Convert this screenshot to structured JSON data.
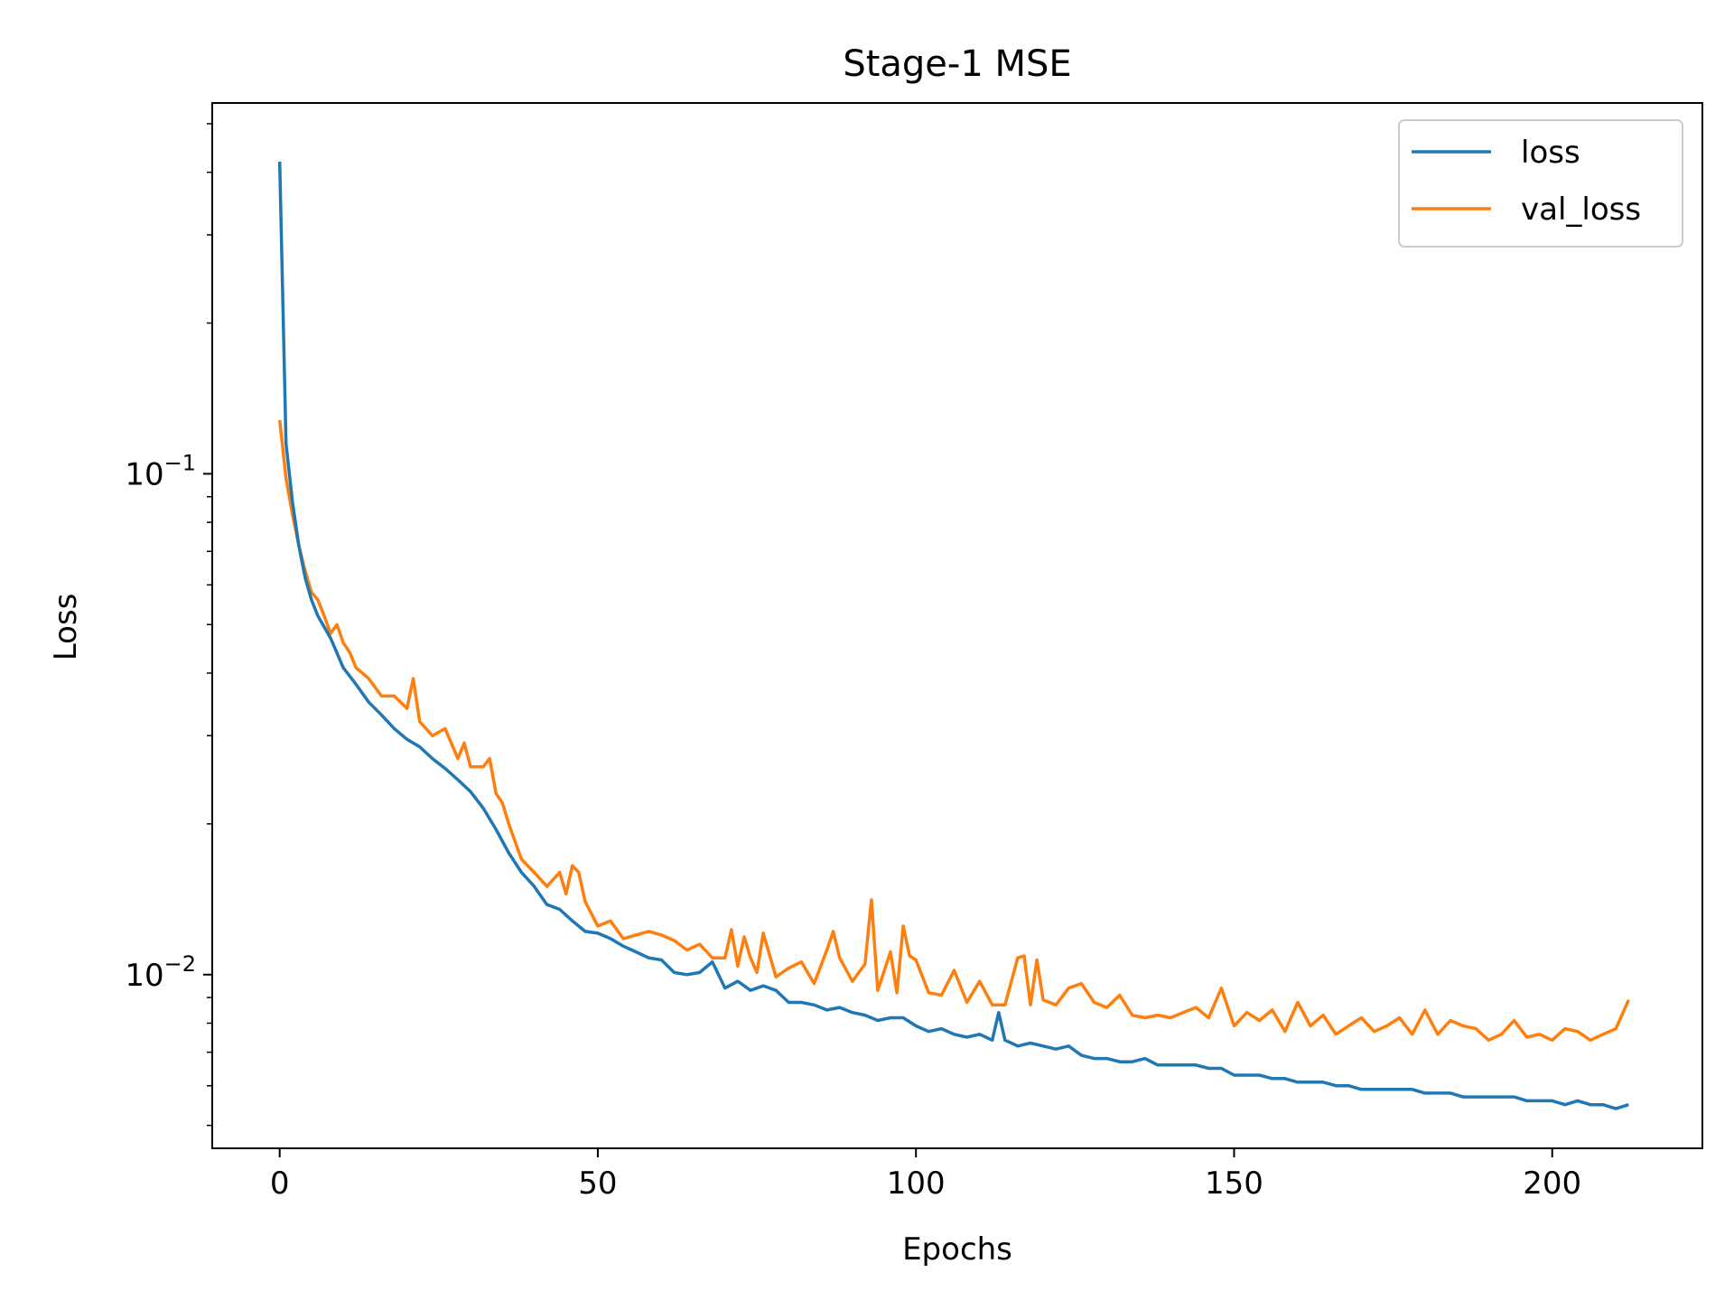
{
  "chart_data": {
    "type": "line",
    "title": "Stage-1 MSE",
    "xlabel": "Epochs",
    "ylabel": "Loss",
    "yscale": "log",
    "xlim": [
      -10.6,
      223.6
    ],
    "ylim": [
      0.0045,
      0.55
    ],
    "grid": false,
    "legend_position": "top-right",
    "x_ticks": [
      0,
      50,
      100,
      150,
      200
    ],
    "x_tick_labels": [
      "0",
      "50",
      "100",
      "150",
      "200"
    ],
    "y_major_ticks": [
      0.1,
      0.01
    ],
    "y_tick_labels": [
      {
        "base": "10",
        "exp": "−1"
      },
      {
        "base": "10",
        "exp": "−2"
      }
    ],
    "series": [
      {
        "name": "loss",
        "color": "#1f77b4",
        "x": [
          0,
          1,
          2,
          3,
          4,
          5,
          6,
          8,
          10,
          12,
          14,
          16,
          18,
          20,
          22,
          24,
          26,
          28,
          30,
          32,
          34,
          36,
          38,
          40,
          42,
          44,
          46,
          48,
          50,
          52,
          54,
          56,
          58,
          60,
          62,
          64,
          66,
          68,
          70,
          72,
          74,
          76,
          78,
          80,
          82,
          84,
          86,
          88,
          90,
          92,
          94,
          96,
          98,
          100,
          102,
          104,
          106,
          108,
          110,
          112,
          113,
          114,
          115,
          116,
          118,
          120,
          122,
          124,
          126,
          128,
          130,
          132,
          134,
          136,
          138,
          140,
          142,
          144,
          146,
          148,
          150,
          152,
          154,
          156,
          158,
          160,
          162,
          164,
          166,
          168,
          170,
          172,
          174,
          176,
          178,
          180,
          182,
          184,
          186,
          188,
          190,
          192,
          194,
          196,
          198,
          200,
          202,
          204,
          206,
          208,
          210,
          212
        ],
        "y": [
          0.42,
          0.115,
          0.088,
          0.072,
          0.062,
          0.056,
          0.052,
          0.047,
          0.041,
          0.038,
          0.035,
          0.033,
          0.031,
          0.0295,
          0.0285,
          0.027,
          0.0258,
          0.0245,
          0.0232,
          0.0215,
          0.0195,
          0.0175,
          0.016,
          0.015,
          0.0138,
          0.0135,
          0.0128,
          0.0122,
          0.0121,
          0.0118,
          0.0114,
          0.0111,
          0.0108,
          0.0107,
          0.0101,
          0.01,
          0.0101,
          0.0106,
          0.0094,
          0.0097,
          0.0093,
          0.0095,
          0.0093,
          0.0088,
          0.0088,
          0.0087,
          0.0085,
          0.0086,
          0.0084,
          0.0083,
          0.0081,
          0.0082,
          0.0082,
          0.0079,
          0.0077,
          0.0078,
          0.0076,
          0.0075,
          0.0076,
          0.0074,
          0.0084,
          0.0074,
          0.0073,
          0.0072,
          0.0073,
          0.0072,
          0.0071,
          0.0072,
          0.0069,
          0.0068,
          0.0068,
          0.0067,
          0.0067,
          0.0068,
          0.0066,
          0.0066,
          0.0066,
          0.0066,
          0.0065,
          0.0065,
          0.0063,
          0.0063,
          0.0063,
          0.0062,
          0.0062,
          0.0061,
          0.0061,
          0.0061,
          0.006,
          0.006,
          0.0059,
          0.0059,
          0.0059,
          0.0059,
          0.0059,
          0.0058,
          0.0058,
          0.0058,
          0.0057,
          0.0057,
          0.0057,
          0.0057,
          0.0057,
          0.0056,
          0.0056,
          0.0056,
          0.0055,
          0.0056,
          0.0055,
          0.0055,
          0.0054,
          0.0055
        ]
      },
      {
        "name": "val_loss",
        "color": "#ff7f0e",
        "x": [
          0,
          1,
          2,
          3,
          4,
          5,
          6,
          7,
          8,
          9,
          10,
          11,
          12,
          14,
          16,
          18,
          20,
          21,
          22,
          23,
          24,
          26,
          28,
          29,
          30,
          32,
          33,
          34,
          35,
          36,
          38,
          40,
          42,
          44,
          45,
          46,
          47,
          48,
          50,
          52,
          54,
          56,
          58,
          60,
          62,
          64,
          66,
          68,
          70,
          71,
          72,
          73,
          74,
          75,
          76,
          78,
          80,
          82,
          84,
          86,
          87,
          88,
          90,
          92,
          93,
          94,
          96,
          97,
          98,
          99,
          100,
          102,
          104,
          106,
          108,
          110,
          112,
          114,
          116,
          117,
          118,
          119,
          120,
          122,
          124,
          126,
          128,
          130,
          132,
          134,
          136,
          138,
          140,
          142,
          144,
          146,
          148,
          150,
          152,
          154,
          156,
          158,
          160,
          162,
          164,
          166,
          168,
          170,
          172,
          174,
          176,
          178,
          180,
          182,
          184,
          186,
          188,
          190,
          192,
          194,
          196,
          198,
          200,
          202,
          204,
          206,
          208,
          210,
          212
        ],
        "y": [
          0.128,
          0.098,
          0.083,
          0.072,
          0.064,
          0.058,
          0.056,
          0.052,
          0.048,
          0.05,
          0.046,
          0.044,
          0.041,
          0.039,
          0.036,
          0.036,
          0.034,
          0.039,
          0.032,
          0.031,
          0.03,
          0.031,
          0.027,
          0.029,
          0.026,
          0.026,
          0.027,
          0.023,
          0.022,
          0.02,
          0.017,
          0.016,
          0.015,
          0.016,
          0.0145,
          0.0165,
          0.016,
          0.014,
          0.0125,
          0.0128,
          0.0118,
          0.012,
          0.0122,
          0.012,
          0.0117,
          0.0112,
          0.0115,
          0.0108,
          0.0108,
          0.0123,
          0.0104,
          0.0119,
          0.0108,
          0.0101,
          0.0121,
          0.0099,
          0.0103,
          0.0106,
          0.0096,
          0.0112,
          0.0122,
          0.0108,
          0.0097,
          0.0105,
          0.0141,
          0.0093,
          0.0111,
          0.0092,
          0.0125,
          0.0109,
          0.0107,
          0.0092,
          0.0091,
          0.0102,
          0.0088,
          0.0097,
          0.0087,
          0.0087,
          0.0108,
          0.0109,
          0.0087,
          0.0107,
          0.0089,
          0.0087,
          0.0094,
          0.0096,
          0.0088,
          0.0086,
          0.0091,
          0.0083,
          0.0082,
          0.0083,
          0.0082,
          0.0084,
          0.0086,
          0.0082,
          0.0094,
          0.0079,
          0.0084,
          0.0081,
          0.0085,
          0.0077,
          0.0088,
          0.0079,
          0.0083,
          0.0076,
          0.0079,
          0.0082,
          0.0077,
          0.0079,
          0.0082,
          0.0076,
          0.0085,
          0.0076,
          0.0081,
          0.0079,
          0.0078,
          0.0074,
          0.0076,
          0.0081,
          0.0075,
          0.0076,
          0.0074,
          0.0078,
          0.0077,
          0.0074,
          0.0076,
          0.0078,
          0.0089
        ]
      }
    ]
  }
}
